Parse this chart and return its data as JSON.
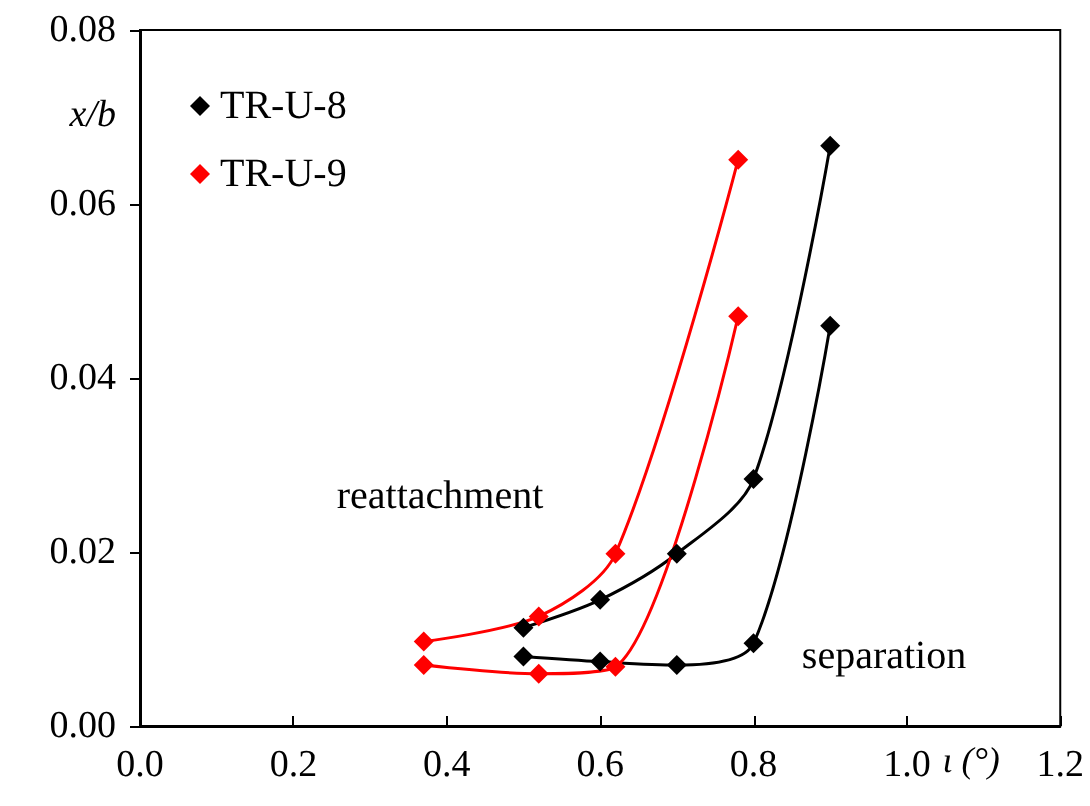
{
  "chart_data": {
    "type": "line",
    "xlabel": "ι (°)",
    "ylabel": "x/b",
    "xlim": [
      0,
      1.2
    ],
    "xticks": [
      {
        "value": 0,
        "label": "0.0"
      },
      0.2,
      0.4,
      0.6,
      0.8,
      {
        "value": 1,
        "label": "1.0"
      },
      1.2
    ],
    "ylim": [
      0,
      0.08
    ],
    "yticks": [
      {
        "value": 0,
        "label": "0.00"
      },
      0.02,
      0.04,
      0.06,
      0.08
    ],
    "series": [
      {
        "name": "TR-U-8",
        "color": "#000000",
        "x": [
          0.5,
          0.6,
          0.7,
          0.8,
          0.9
        ],
        "values": [
          0.0113,
          0.0145,
          0.0198,
          0.0284,
          0.0667
        ]
      },
      {
        "name": "TR-U-9",
        "color": "#ff0000",
        "x": [
          0.37,
          0.52,
          0.62,
          0.78
        ],
        "values": [
          0.0097,
          0.0126,
          0.0198,
          0.0651
        ]
      },
      {
        "color": "#000000",
        "x": [
          0.5,
          0.6,
          0.7,
          0.8,
          0.9
        ],
        "values": [
          0.008,
          0.0074,
          0.007,
          0.0095,
          0.046
        ]
      },
      {
        "color": "#ff0000",
        "x": [
          0.37,
          0.52,
          0.62,
          0.78
        ],
        "values": [
          0.007,
          0.006,
          0.0068,
          0.0471
        ]
      }
    ],
    "annotations": [
      "reattachment",
      "separation"
    ],
    "legend": "top left",
    "grid": false,
    "marker": "diamond",
    "line_style": "solid"
  }
}
